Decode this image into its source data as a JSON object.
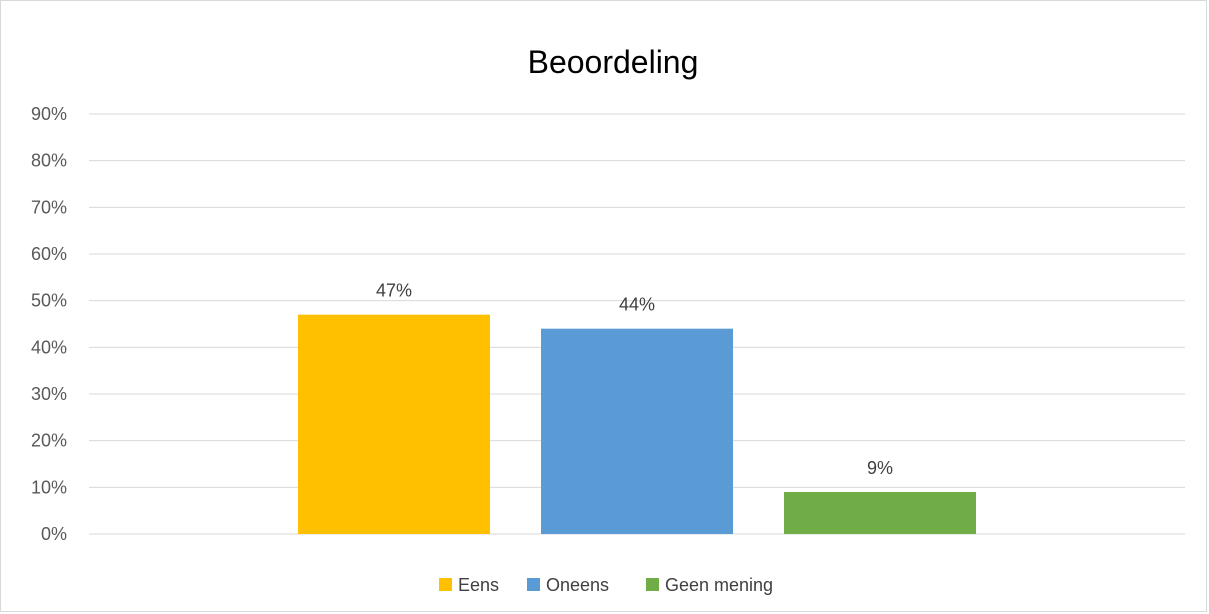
{
  "chart_data": {
    "type": "bar",
    "title": "Beoordeling",
    "categories": [
      "Eens",
      "Oneens",
      "Geen mening"
    ],
    "values": [
      47,
      44,
      9
    ],
    "data_labels": [
      "47%",
      "44%",
      "9%"
    ],
    "colors": [
      "#FFC000",
      "#5B9BD5",
      "#70AD47"
    ],
    "xlabel": "",
    "ylabel": "",
    "ylim": [
      0,
      90
    ],
    "yticks": [
      0,
      10,
      20,
      30,
      40,
      50,
      60,
      70,
      80,
      90
    ],
    "ytick_labels": [
      "0%",
      "10%",
      "20%",
      "30%",
      "40%",
      "50%",
      "60%",
      "70%",
      "80%",
      "90%"
    ],
    "grid": true,
    "legend": {
      "placement": "bottom",
      "entries": [
        "Eens",
        "Oneens",
        "Geen mening"
      ]
    }
  }
}
